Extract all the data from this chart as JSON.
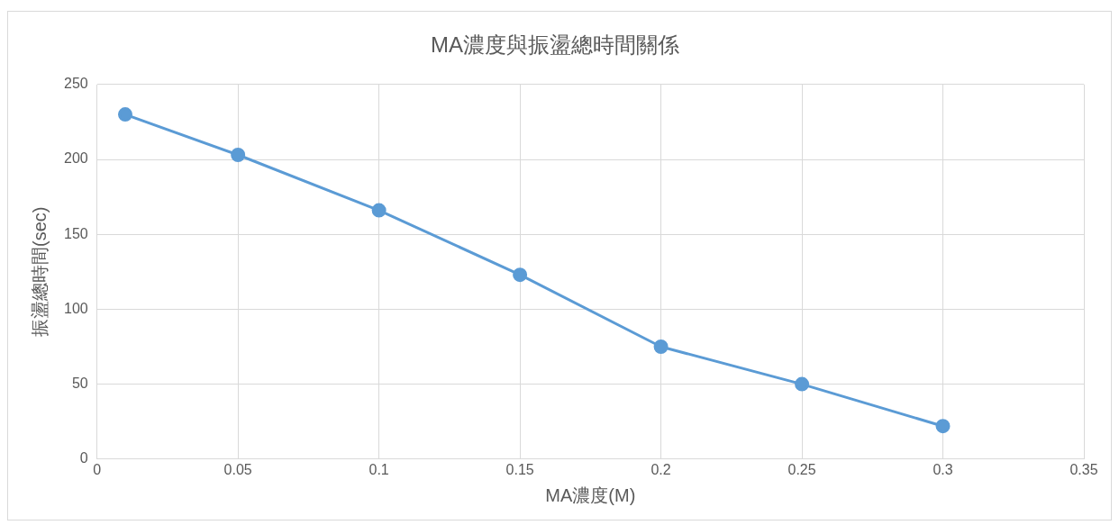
{
  "chart_data": {
    "type": "line",
    "title": "MA濃度與振盪總時間關係",
    "xlabel": "MA濃度(M)",
    "ylabel": "振盪總時間(sec)",
    "x": [
      0.01,
      0.05,
      0.1,
      0.15,
      0.2,
      0.25,
      0.3
    ],
    "series": [
      {
        "color": "#5b9bd5",
        "values": [
          230,
          203,
          166,
          123,
          75,
          50,
          22
        ]
      }
    ],
    "xlim": [
      0,
      0.35
    ],
    "xticks": [
      0,
      0.05,
      0.1,
      0.15,
      0.2,
      0.25,
      0.3,
      0.35
    ],
    "ylim": [
      0,
      250
    ],
    "yticks": [
      0,
      50,
      100,
      150,
      200,
      250
    ],
    "grid": true,
    "legend": false,
    "marker": "circle",
    "line_style": "solid"
  }
}
